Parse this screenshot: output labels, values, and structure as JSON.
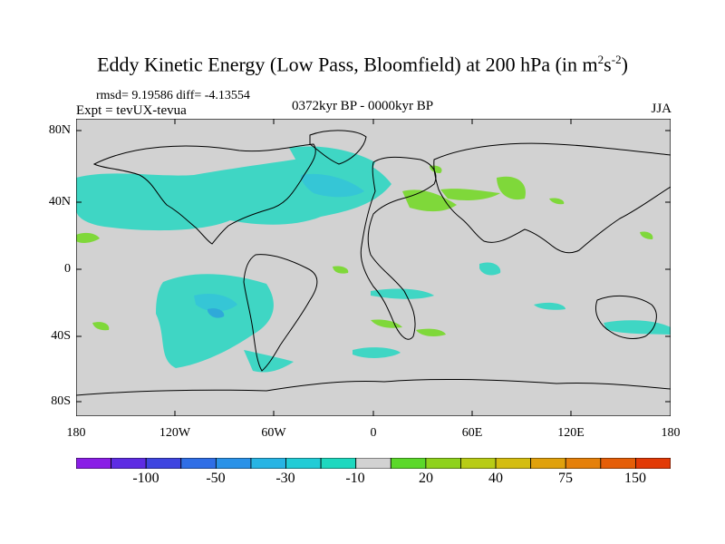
{
  "title": {
    "main": "Eddy Kinetic Energy (Low Pass, Bloomfield) at 200 hPa (in m",
    "sup1": "2",
    "mid": "s",
    "sup2": "-2",
    "end": ")"
  },
  "stats": "rmsd= 9.19586 diff= -4.13554",
  "experiment": "Expt = tevUX-tevua",
  "period": "0372kyr BP - 0000kyr BP",
  "season": "JJA",
  "y_ticks": [
    "80N",
    "40N",
    "0",
    "40S",
    "80S"
  ],
  "x_ticks": [
    "180",
    "120W",
    "60W",
    "0",
    "60E",
    "120E",
    "180"
  ],
  "colorbar": {
    "colors": [
      "#8a1ee6",
      "#5e2ce3",
      "#3f45e0",
      "#2f6ee6",
      "#2a92e8",
      "#27b4e4",
      "#22ccd6",
      "#1ed8bf",
      "#d2d2d2",
      "#5bd82a",
      "#8fd21d",
      "#b8cc16",
      "#d4bd10",
      "#e0a10c",
      "#e5800a",
      "#e55e08",
      "#e23a06"
    ],
    "labels": [
      "-100",
      "-50",
      "-30",
      "-10",
      "20",
      "40",
      "75",
      "150"
    ]
  },
  "map_colors": {
    "ocean_background": "#d2d2d2",
    "light_negative": "#3fd6c4",
    "medium_negative": "#35c6d6",
    "darker_negative": "#2fa9d9",
    "light_positive": "#7fd83a",
    "coastline": "#000000"
  }
}
